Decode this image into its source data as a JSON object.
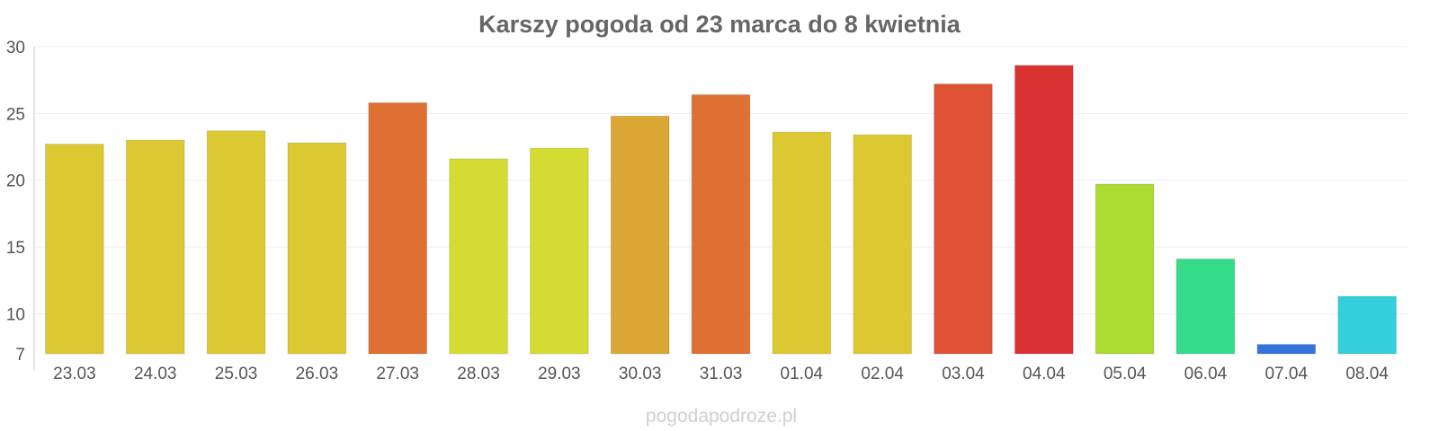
{
  "chart_data": {
    "type": "bar",
    "title": "Karszy pogoda od 23 marca do 8 kwietnia",
    "xlabel": "",
    "ylabel": "",
    "categories": [
      "23.03",
      "24.03",
      "25.03",
      "26.03",
      "27.03",
      "28.03",
      "29.03",
      "30.03",
      "31.03",
      "01.04",
      "02.04",
      "03.04",
      "04.04",
      "05.04",
      "06.04",
      "07.04",
      "08.04"
    ],
    "values": [
      22.7,
      23.0,
      23.7,
      22.8,
      25.8,
      21.6,
      22.4,
      24.8,
      26.4,
      23.6,
      23.4,
      27.2,
      28.6,
      19.7,
      14.1,
      7.7,
      11.3
    ],
    "colors": [
      "#dcc932",
      "#dcc932",
      "#dcc932",
      "#dcc932",
      "#de7033",
      "#d2dc32",
      "#d2dc32",
      "#dca632",
      "#de7033",
      "#dcc932",
      "#dcc932",
      "#de5233",
      "#db3333",
      "#abdc32",
      "#34dc8a",
      "#3373db",
      "#34cedc"
    ],
    "yticks": [
      7,
      10,
      15,
      20,
      25,
      30
    ],
    "ylim": [
      7,
      30
    ],
    "grid": true,
    "legend": "none"
  },
  "watermark": "pogodapodroze.pl"
}
